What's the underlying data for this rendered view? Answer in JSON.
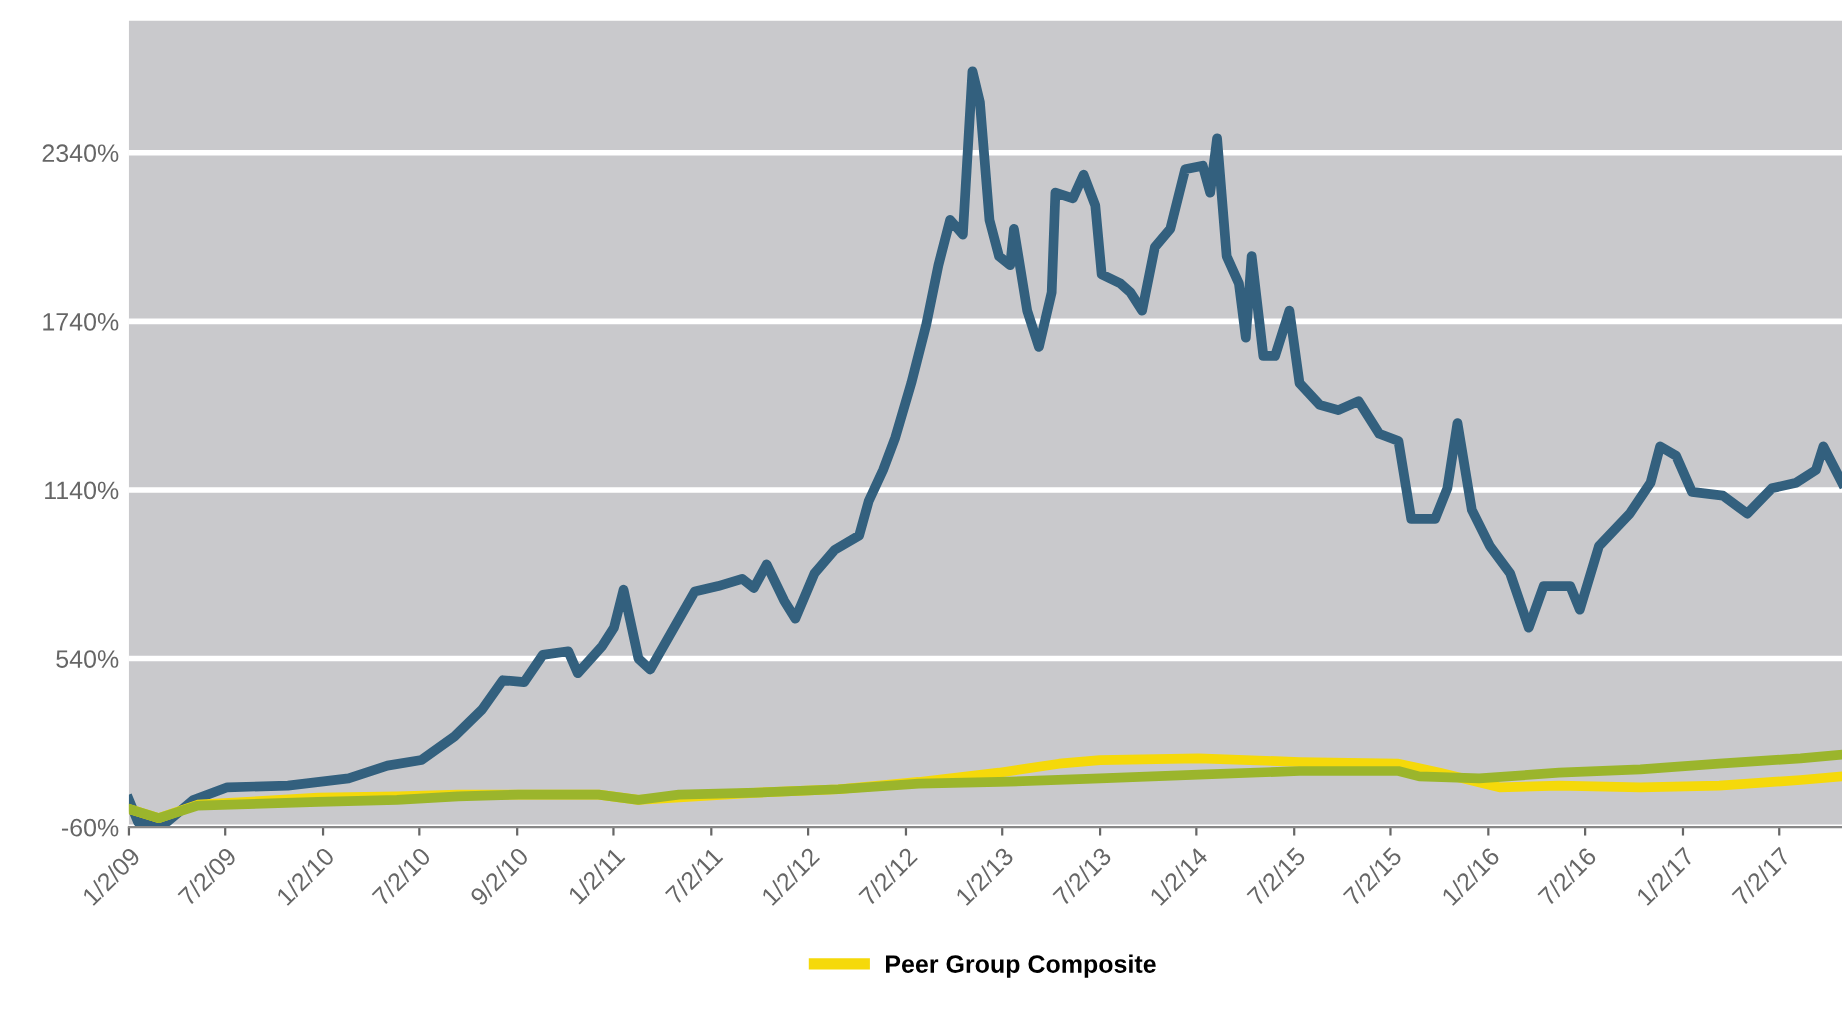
{
  "chart_data": {
    "type": "line",
    "ylim": [
      -60,
      2810
    ],
    "yticks": [
      {
        "value": -60,
        "label": "-60%"
      },
      {
        "value": 540,
        "label": "540%"
      },
      {
        "value": 1140,
        "label": "1140%"
      },
      {
        "value": 1740,
        "label": "1740%"
      },
      {
        "value": 2340,
        "label": "2340%"
      }
    ],
    "xlim": [
      "2009-01-02",
      "2017-10-28"
    ],
    "xticks": [
      {
        "value": "2009-01-02",
        "label": "1/2/09"
      },
      {
        "value": "2009-07-02",
        "label": "7/2/09"
      },
      {
        "value": "2010-01-02",
        "label": "1/2/10"
      },
      {
        "value": "2010-07-02",
        "label": "7/2/10"
      },
      {
        "value": "2011-01-02",
        "label": "9/2/10"
      },
      {
        "value": "2011-07-02",
        "label": "1/2/11"
      },
      {
        "value": "2012-01-02",
        "label": "7/2/11"
      },
      {
        "value": "2012-07-02",
        "label": "1/2/12"
      },
      {
        "value": "2013-01-02",
        "label": "7/2/12"
      },
      {
        "value": "2013-07-02",
        "label": "1/2/13"
      },
      {
        "value": "2014-01-02",
        "label": "7/2/13"
      },
      {
        "value": "2014-07-02",
        "label": "1/2/14"
      },
      {
        "value": "2015-01-02",
        "label": "7/2/15"
      },
      {
        "value": "2015-07-02",
        "label": "7/2/15"
      },
      {
        "value": "2016-01-02",
        "label": "1/2/16"
      },
      {
        "value": "2016-07-02",
        "label": "7/2/16"
      },
      {
        "value": "2017-01-02",
        "label": "1/2/17"
      },
      {
        "value": "2017-07-02",
        "label": "7/2/17"
      }
    ],
    "grid": "y",
    "legend": "bottom",
    "marker": "none",
    "line_style": "solid",
    "series": [
      {
        "color": "#33607e",
        "x": [
          "2009-01-02",
          "2009-01-19",
          "2009-03-15",
          "2009-05-03",
          "2009-07-06",
          "2009-10-28",
          "2010-02-19",
          "2010-05-03",
          "2010-07-06",
          "2010-09-06",
          "2010-10-28",
          "2010-12-06",
          "2011-01-15",
          "2011-02-19",
          "2011-04-08",
          "2011-04-26",
          "2011-06-11",
          "2011-07-03",
          "2011-07-21",
          "2011-08-18",
          "2011-09-09",
          "2011-10-24",
          "2011-12-02",
          "2012-01-15",
          "2012-02-29",
          "2012-03-22",
          "2012-04-15",
          "2012-05-18",
          "2012-06-08",
          "2012-07-14",
          "2012-08-21",
          "2012-10-06",
          "2012-10-24",
          "2012-11-20",
          "2012-12-13",
          "2013-01-12",
          "2013-02-09",
          "2013-03-04",
          "2013-03-26",
          "2013-04-19",
          "2013-04-26",
          "2013-05-07",
          "2013-05-21",
          "2013-06-08",
          "2013-06-26",
          "2013-07-17",
          "2013-07-24",
          "2013-08-18",
          "2013-09-09",
          "2013-10-03",
          "2013-10-10",
          "2013-11-12",
          "2013-12-02",
          "2013-12-24",
          "2014-01-05",
          "2014-02-09",
          "2014-02-28",
          "2014-03-22",
          "2014-04-15",
          "2014-05-14",
          "2014-06-11",
          "2014-07-14",
          "2014-07-28",
          "2014-08-10",
          "2014-08-28",
          "2014-09-20",
          "2014-10-03",
          "2014-10-14",
          "2014-11-05",
          "2014-11-27",
          "2014-12-24",
          "2015-01-12",
          "2015-02-19",
          "2015-03-26",
          "2015-05-03",
          "2015-06-11",
          "2015-07-17",
          "2015-08-10",
          "2015-09-24",
          "2015-10-17",
          "2015-11-05",
          "2015-12-02",
          "2016-01-05",
          "2016-02-12",
          "2016-03-18",
          "2016-04-15",
          "2016-06-04",
          "2016-06-22",
          "2016-07-28",
          "2016-09-24",
          "2016-11-02",
          "2016-11-20",
          "2016-12-20",
          "2017-01-19",
          "2017-03-18",
          "2017-05-03",
          "2017-06-18",
          "2017-08-03",
          "2017-09-09",
          "2017-09-23",
          "2017-10-28"
        ],
        "values": [
          37,
          -41,
          -41,
          37,
          82,
          88,
          114,
          159,
          179,
          263,
          359,
          463,
          456,
          553,
          566,
          488,
          585,
          650,
          785,
          540,
          501,
          650,
          779,
          798,
          824,
          791,
          875,
          746,
          682,
          843,
          927,
          978,
          1101,
          1211,
          1327,
          1520,
          1727,
          1940,
          2101,
          2049,
          2275,
          2630,
          2520,
          2101,
          1972,
          1940,
          2069,
          1778,
          1649,
          1843,
          2198,
          2178,
          2262,
          2152,
          1907,
          1875,
          1843,
          1778,
          2004,
          2069,
          2281,
          2294,
          2198,
          2391,
          1972,
          1875,
          1682,
          1972,
          1617,
          1617,
          1778,
          1520,
          1443,
          1424,
          1456,
          1340,
          1314,
          1037,
          1037,
          1146,
          1378,
          1069,
          940,
          843,
          650,
          798,
          798,
          714,
          940,
          1056,
          1166,
          1295,
          1262,
          1133,
          1120,
          1056,
          1146,
          1166,
          1211,
          1295,
          1166
        ]
      },
      {
        "name": "Peer Group Composite",
        "color": "#f5d90a",
        "x": [
          "2009-01-02",
          "2009-02-27",
          "2009-05-11",
          "2009-12-24",
          "2010-05-21",
          "2010-09-13",
          "2011-06-04",
          "2011-08-18",
          "2012-03-29",
          "2012-08-28",
          "2013-01-26",
          "2013-06-26",
          "2013-10-17",
          "2014-01-02",
          "2014-07-06",
          "2015-01-12",
          "2015-07-17",
          "2015-10-03",
          "2016-01-23",
          "2016-05-14",
          "2016-10-14",
          "2017-03-11",
          "2017-08-11",
          "2017-10-28"
        ],
        "values": [
          5,
          -28,
          20,
          45,
          50,
          56,
          56,
          37,
          63,
          75,
          101,
          134,
          166,
          179,
          185,
          172,
          166,
          134,
          82,
          88,
          82,
          88,
          108,
          121
        ]
      },
      {
        "color": "#9bb52c",
        "x": [
          "2009-01-02",
          "2009-02-27",
          "2009-05-11",
          "2009-12-24",
          "2010-05-21",
          "2010-09-13",
          "2011-01-05",
          "2011-06-04",
          "2011-08-18",
          "2011-11-02",
          "2012-03-29",
          "2012-08-28",
          "2013-01-26",
          "2013-06-26",
          "2014-01-02",
          "2014-07-06",
          "2015-01-12",
          "2015-07-17",
          "2015-08-25",
          "2015-12-16",
          "2016-05-14",
          "2016-10-14",
          "2017-03-11",
          "2017-08-11",
          "2017-10-28"
        ],
        "values": [
          5,
          -28,
          17,
          30,
          37,
          50,
          56,
          56,
          37,
          56,
          63,
          75,
          95,
          101,
          114,
          127,
          140,
          140,
          121,
          114,
          134,
          146,
          166,
          185,
          198
        ]
      }
    ]
  }
}
